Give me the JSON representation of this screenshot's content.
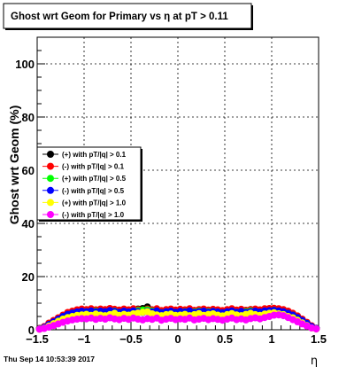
{
  "chart_data": {
    "type": "scatter",
    "title": "Ghost wrt Geom for Primary vs   η at pT > 0.11",
    "xlabel": "η",
    "ylabel": "Ghost wrt Geom (%)",
    "xlim": [
      -1.5,
      1.5
    ],
    "ylim": [
      0,
      110
    ],
    "x_ticks": [
      -1.5,
      -1,
      -0.5,
      0,
      0.5,
      1,
      1.5
    ],
    "x_tick_labels": [
      "−1.5",
      "−1",
      "−0.5",
      "0",
      "0.5",
      "1",
      "1.5"
    ],
    "y_ticks": [
      0,
      20,
      40,
      60,
      80,
      100
    ],
    "y_tick_labels": [
      "0",
      "20",
      "40",
      "60",
      "80",
      "100"
    ],
    "grid": true,
    "legend_position": "left-middle",
    "x": [
      -1.475,
      -1.425,
      -1.375,
      -1.325,
      -1.275,
      -1.225,
      -1.175,
      -1.125,
      -1.075,
      -1.025,
      -0.975,
      -0.925,
      -0.875,
      -0.825,
      -0.775,
      -0.725,
      -0.675,
      -0.625,
      -0.575,
      -0.525,
      -0.475,
      -0.425,
      -0.375,
      -0.325,
      -0.275,
      -0.225,
      -0.175,
      -0.125,
      -0.075,
      -0.025,
      0.025,
      0.075,
      0.125,
      0.175,
      0.225,
      0.275,
      0.325,
      0.375,
      0.425,
      0.475,
      0.525,
      0.575,
      0.625,
      0.675,
      0.725,
      0.775,
      0.825,
      0.875,
      0.925,
      0.975,
      1.025,
      1.075,
      1.125,
      1.175,
      1.225,
      1.275,
      1.325,
      1.375,
      1.425,
      1.475
    ],
    "series": [
      {
        "name": "(+) with pT/|q| > 0.1",
        "color": "#000000",
        "values": [
          0.5,
          1,
          2,
          3,
          4,
          5,
          6,
          6.5,
          7,
          7.2,
          7.5,
          7,
          7.4,
          7.1,
          7,
          7.2,
          7.6,
          6.8,
          7.3,
          7,
          7.5,
          7.8,
          8,
          8.6,
          7.5,
          7,
          6.8,
          7.2,
          7.4,
          7,
          7.1,
          7.3,
          6.9,
          7.2,
          7.5,
          7,
          7.3,
          7.4,
          7,
          6.8,
          7.2,
          7.5,
          7.1,
          6.9,
          7.3,
          7.6,
          7.2,
          7,
          7.4,
          7.6,
          7.8,
          7.5,
          7.2,
          6.5,
          6,
          5,
          3.8,
          2.5,
          1.2,
          0.5
        ]
      },
      {
        "name": "(-) with pT/|q| > 0.1",
        "color": "#ff0000",
        "values": [
          0.4,
          1.2,
          2.5,
          3.5,
          4.5,
          5.5,
          6.5,
          7,
          7.5,
          7.8,
          7.6,
          7.9,
          7.5,
          7.8,
          7.6,
          8,
          7.7,
          7.4,
          7.8,
          7.5,
          7.9,
          7.6,
          7.3,
          7.8,
          7.5,
          7.9,
          7.2,
          7.6,
          7.8,
          7.4,
          7.7,
          7.5,
          7.9,
          7.3,
          7.6,
          7.8,
          7.4,
          7.7,
          7.5,
          7.2,
          7.6,
          7.9,
          7.4,
          7.7,
          7.3,
          7.6,
          7.8,
          7.5,
          7.9,
          8,
          8.1,
          7.9,
          7.6,
          7,
          6.2,
          5.2,
          4,
          2.8,
          1.5,
          0.6
        ]
      },
      {
        "name": "(+) with pT/|q| > 0.5",
        "color": "#00ff00",
        "values": [
          0.3,
          0.8,
          1.8,
          2.8,
          3.8,
          4.8,
          5.5,
          6,
          6.4,
          6.6,
          6.8,
          6.5,
          6.9,
          6.6,
          6.4,
          6.7,
          7,
          6.5,
          6.8,
          6.6,
          7,
          7.2,
          7.4,
          7.5,
          7,
          6.6,
          6.4,
          6.7,
          6.9,
          6.5,
          6.6,
          6.8,
          6.4,
          6.7,
          7,
          6.5,
          6.8,
          6.9,
          6.5,
          6.3,
          6.7,
          7,
          6.6,
          6.4,
          6.8,
          7.1,
          6.7,
          6.5,
          6.9,
          7.1,
          7.3,
          7,
          6.7,
          6,
          5.5,
          4.5,
          3.4,
          2.2,
          1,
          0.4
        ]
      },
      {
        "name": "(-) with pT/|q| > 0.5",
        "color": "#0000ff",
        "values": [
          0.3,
          0.9,
          2,
          3,
          4,
          5,
          5.8,
          6.3,
          6.7,
          7,
          6.8,
          7.1,
          6.7,
          7,
          6.8,
          7.2,
          6.9,
          6.6,
          7,
          6.7,
          7.1,
          6.8,
          6.5,
          7,
          6.7,
          7.1,
          6.4,
          6.8,
          7,
          6.6,
          6.9,
          6.7,
          7.1,
          6.5,
          6.8,
          7,
          6.6,
          6.9,
          6.7,
          6.4,
          6.8,
          7.1,
          6.6,
          6.9,
          6.5,
          6.8,
          7,
          6.7,
          7.1,
          7.2,
          7.3,
          7.1,
          6.8,
          6.2,
          5.5,
          4.6,
          3.5,
          2.4,
          1.2,
          0.5
        ]
      },
      {
        "name": "(+) with pT/|q| > 1.0",
        "color": "#ffff00",
        "values": [
          0.2,
          0.6,
          1.4,
          2.3,
          3.2,
          4,
          4.6,
          5,
          5.4,
          5.6,
          5.8,
          5.4,
          5.9,
          5.5,
          5.3,
          5.7,
          6.2,
          5.4,
          5.8,
          5.5,
          6,
          6.3,
          6.6,
          6.8,
          6,
          5.6,
          5.3,
          5.7,
          5.9,
          5.4,
          5.5,
          5.8,
          5.3,
          5.7,
          6.1,
          5.4,
          5.8,
          6,
          5.5,
          5.2,
          5.7,
          6.1,
          5.6,
          5.3,
          5.8,
          6.2,
          5.7,
          5.4,
          5.9,
          6.2,
          6.4,
          6,
          5.7,
          5,
          4.5,
          3.6,
          2.6,
          1.6,
          0.7,
          0.3
        ]
      },
      {
        "name": "(-) with pT/|q| > 1.0",
        "color": "#ff00ff",
        "values": [
          0.2,
          0.5,
          1,
          1.6,
          2.2,
          2.8,
          3.3,
          3.7,
          4,
          4.2,
          4.1,
          4.4,
          3.9,
          4.3,
          4,
          4.5,
          4.1,
          3.8,
          4.3,
          3.9,
          4.4,
          4,
          3.7,
          4.2,
          3.9,
          4.4,
          3.6,
          4,
          4.3,
          3.8,
          4.1,
          3.9,
          4.4,
          3.7,
          4,
          4.3,
          3.8,
          4.2,
          3.9,
          3.6,
          4,
          4.4,
          3.8,
          4.1,
          3.7,
          4.2,
          4.5,
          4.1,
          4.6,
          5,
          5.5,
          5.6,
          5.3,
          4.6,
          3.8,
          3,
          2.2,
          1.4,
          0.7,
          0.3
        ]
      }
    ]
  },
  "footer": {
    "timestamp": "Thu Sep 14 10:53:39 2017"
  }
}
